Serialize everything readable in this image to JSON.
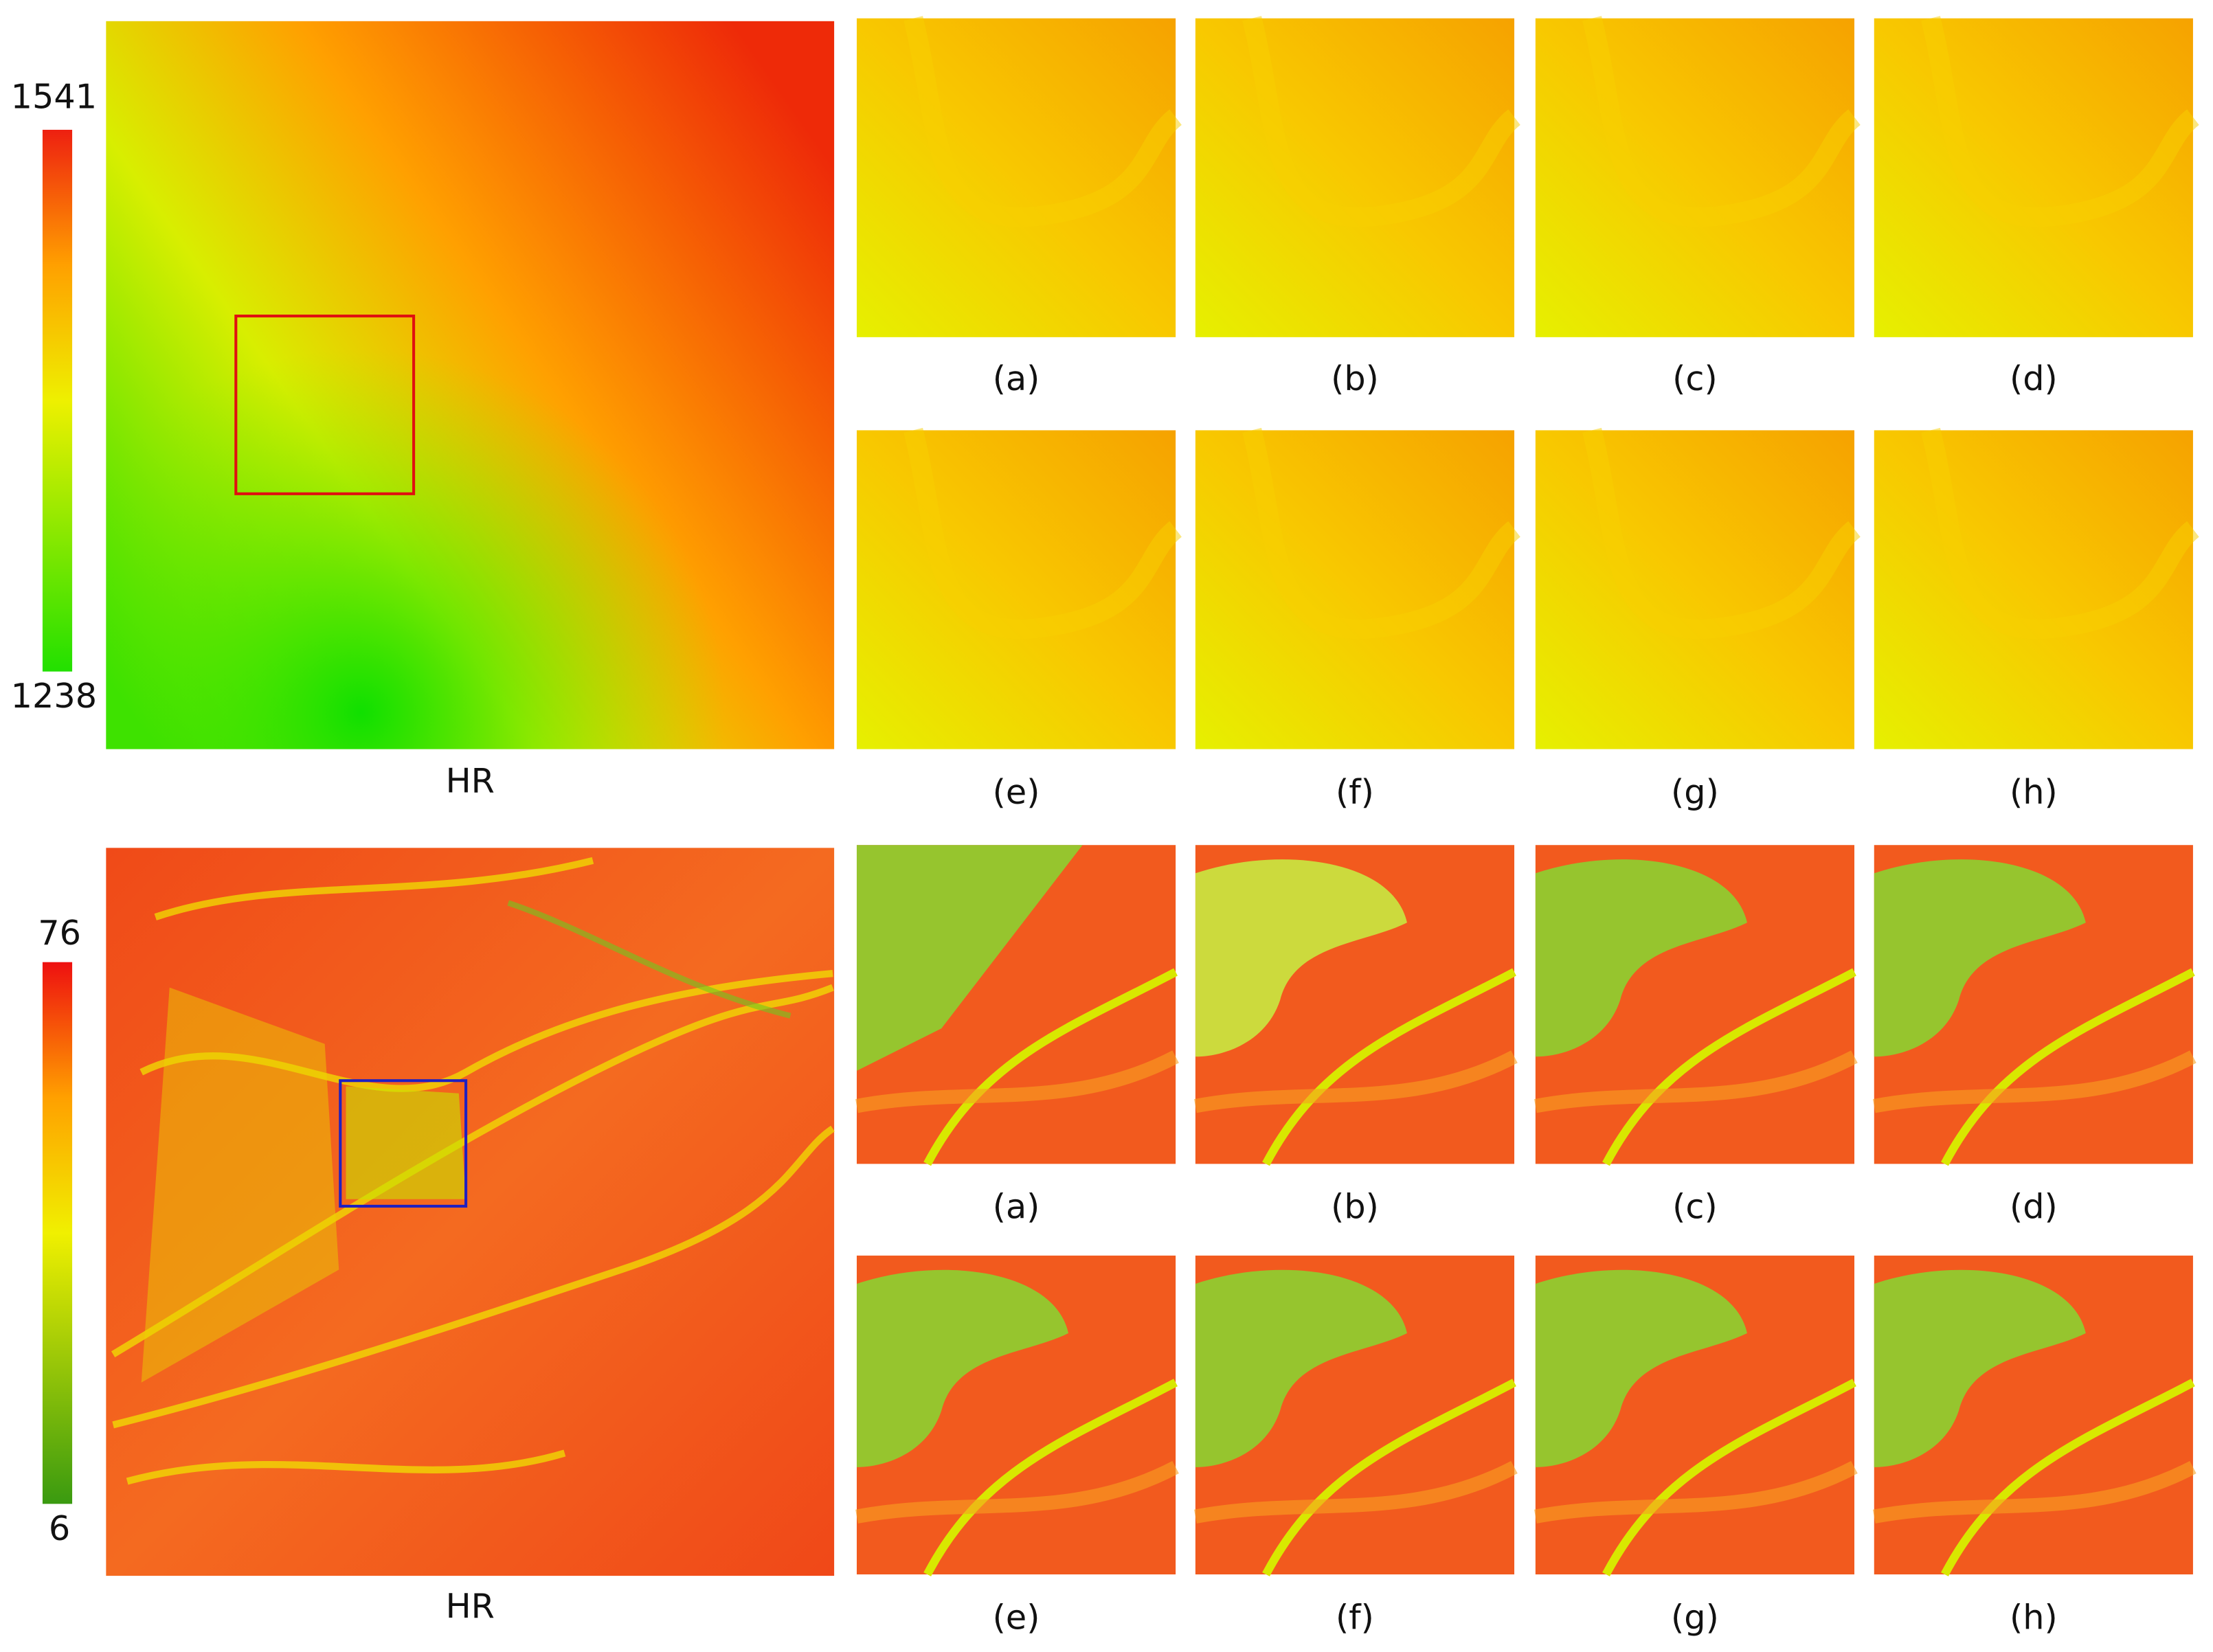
{
  "top": {
    "colorbar": {
      "max": 1541,
      "min": 1238
    },
    "hr_label": "HR",
    "panels": [
      "(a)",
      "(b)",
      "(c)",
      "(d)",
      "(e)",
      "(f)",
      "(g)",
      "(h)"
    ]
  },
  "bottom": {
    "colorbar": {
      "max": 76,
      "min": 6
    },
    "hr_label": "HR",
    "panels": [
      "(a)",
      "(b)",
      "(c)",
      "(d)",
      "(e)",
      "(f)",
      "(g)",
      "(h)"
    ]
  }
}
